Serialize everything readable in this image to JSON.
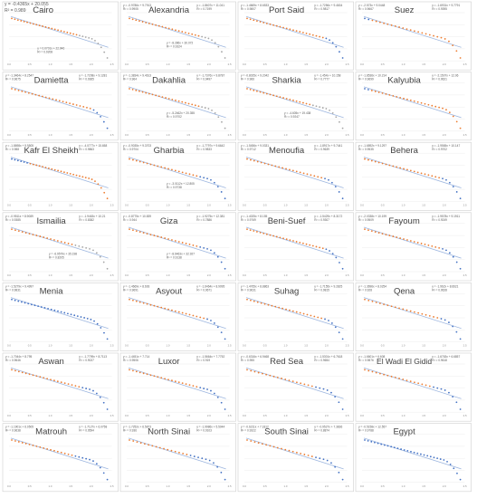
{
  "colors": {
    "orange": "#ED7D31",
    "blue": "#4472C4",
    "gray": "#A5A5A5",
    "trend": "#9DB6DF",
    "frame": "#D0D0D0"
  },
  "chart_data": [
    {
      "type": "scatter",
      "title": "Cairo",
      "annotations": [
        "y = -0.4365x + 20.055",
        "R² = 0.989",
        "y = 0.0701x + 22.946",
        "R² = 0.9208"
      ]
    },
    {
      "type": "scatter",
      "title": "Alexandria",
      "annotations": [
        "y = -0.9786x + 9.7913",
        "R² = 0.9905",
        "y = -1.8607x + 11.041",
        "R² = 0.7199",
        "y = -8.286x + 30.072",
        "R² = 0.9324"
      ]
    },
    {
      "type": "scatter",
      "title": "Port Said",
      "annotations": [
        "y = -1.4669x + 8.6533",
        "R² = 0.9807",
        "y = -1.7256x + 9.4634",
        "R² = 0.9817"
      ]
    },
    {
      "type": "scatter",
      "title": "Suez",
      "annotations": [
        "y = -2.573x + 9.0448",
        "R² = 0.9667",
        "y = -1.6931x + 9.7791",
        "R² = 0.9395"
      ]
    },
    {
      "type": "scatter",
      "title": "Damietta",
      "annotations": [
        "y = -1.3464x + 8.2547",
        "R² = 0.9675",
        "y = -1.7208x + 9.1281",
        "R² = 0.9365"
      ]
    },
    {
      "type": "scatter",
      "title": "Dakahlia",
      "annotations": [
        "y = -1.3834x + 9.4613",
        "R² = 0.964",
        "y = -1.7376x + 9.8787",
        "R² = 0.9497",
        "y = -5.2462x + 20.355",
        "R² = 0.9702"
      ]
    },
    {
      "type": "scatter",
      "title": "Sharkia",
      "annotations": [
        "y = -0.8025x + 9.2042",
        "R² = 0.966",
        "y = -1.454x + 10.158",
        "R² = 0.7777",
        "y = -4.605x + 19.438",
        "R² = 0.9247"
      ]
    },
    {
      "type": "scatter",
      "title": "Kalyubia",
      "annotations": [
        "y = -1.8536x + 10.214",
        "R² = 0.9699",
        "y = -2.1507x + 12.06",
        "R² = 0.9621"
      ]
    },
    {
      "type": "scatter",
      "title": "Kafr El Sheikh",
      "annotations": [
        "y = -1.8698x + 9.9505",
        "R² = 0.988",
        "y = -4.0777x + 15.658",
        "R² = 0.9863"
      ]
    },
    {
      "type": "scatter",
      "title": "Gharbia",
      "annotations": [
        "y = -0.9035x + 9.3703",
        "R² = 0.9704",
        "y = -1.7797x + 9.6642",
        "R² = 0.9833",
        "y = -3.0112x + 12.805",
        "R² = 0.9738"
      ]
    },
    {
      "type": "scatter",
      "title": "Menoufia",
      "annotations": [
        "y = -1.5456x + 9.0331",
        "R² = 0.9712",
        "y = -1.8917x + 9.7441",
        "R² = 0.9639"
      ]
    },
    {
      "type": "scatter",
      "title": "Behera",
      "annotations": [
        "y = -1.6892x + 9.1297",
        "R² = 0.9535",
        "y = -1.9565x + 10.147",
        "R² = 0.9702"
      ]
    },
    {
      "type": "scatter",
      "title": "Ismailia",
      "annotations": [
        "y = -0.9511x + 8.9089",
        "R² = 0.9385",
        "y = -1.9463x + 10.21",
        "R² = 0.8382",
        "y = -6.9579x + 35.198",
        "R² = 0.8205"
      ]
    },
    {
      "type": "scatter",
      "title": "Giza",
      "annotations": [
        "y = -0.8775x + 10.839",
        "R² = 0.944",
        "y = -1.9275x + 12.381",
        "R² = 0.7886",
        "y = -8.6463x + 32.927",
        "R² = 0.9138"
      ]
    },
    {
      "type": "scatter",
      "title": "Beni-Suef",
      "annotations": [
        "y = -1.4025x + 8.155",
        "R² = 0.9769",
        "y = -1.5429x + 8.3172",
        "R² = 0.9307"
      ]
    },
    {
      "type": "scatter",
      "title": "Fayoum",
      "annotations": [
        "y = -2.0338x + 10.199",
        "R² = 0.9509",
        "y = -1.9578x + 9.1911",
        "R² = 0.9249"
      ]
    },
    {
      "type": "scatter",
      "title": "Menia",
      "annotations": [
        "y = -1.5279x + 9.4997",
        "R² = 0.9831"
      ]
    },
    {
      "type": "scatter",
      "title": "Asyout",
      "annotations": [
        "y = -1.4669x + 8.693",
        "R² = 0.9691",
        "y = -1.6464x + 8.9095",
        "R² = 0.9671"
      ]
    },
    {
      "type": "scatter",
      "title": "Suhag",
      "annotations": [
        "y = -1.4765x + 8.8863",
        "R² = 0.9631",
        "y = -1.7155x + 9.2825",
        "R² = 0.9815"
      ]
    },
    {
      "type": "scatter",
      "title": "Qena",
      "annotations": [
        "y = -1.3696x + 8.0254",
        "R² = 0.928",
        "y = -1.962x + 8.6621",
        "R² = 0.9628"
      ]
    },
    {
      "type": "scatter",
      "title": "Aswan",
      "annotations": [
        "y = -1.7044x + 8.795",
        "R² = 0.9646",
        "y = -1.7799x + 8.7113",
        "R² = 0.9027"
      ]
    },
    {
      "type": "scatter",
      "title": "Luxor",
      "annotations": [
        "y = -1.4451x + 7.714",
        "R² = 0.9506",
        "y = -1.5664x + 7.7752",
        "R² = 0.919"
      ]
    },
    {
      "type": "scatter",
      "title": "Red Sea",
      "annotations": [
        "y = -0.6316x + 6.9468",
        "R² = 0.955",
        "y = -1.5301x + 6.7618",
        "R² = 0.9654"
      ]
    },
    {
      "type": "scatter",
      "title": "El Wadi El Gidid",
      "annotations": [
        "y = -1.6601x + 6.608",
        "R² = 0.9876",
        "y = -1.6763x + 6.6857",
        "R² = 0.9618"
      ]
    },
    {
      "type": "scatter",
      "title": "Matrouh",
      "annotations": [
        "y = -1.1901x + 6.0505",
        "R² = 0.9638",
        "y = -1.7127x + 6.0758",
        "R² = 0.9594"
      ]
    },
    {
      "type": "scatter",
      "title": "North Sinai",
      "annotations": [
        "y = -1.7252x + 6.5873",
        "R² = 0.936",
        "y = -1.9986x + 5.5044",
        "R² = 0.9103"
      ]
    },
    {
      "type": "scatter",
      "title": "South Sinai",
      "annotations": [
        "y = -0.6211x + 7.1812",
        "R² = 0.9322",
        "y = -0.9527x + 7.3836",
        "R² = 0.8874"
      ]
    },
    {
      "type": "scatter",
      "title": "Egypt",
      "annotations": [
        "y = -0.5158x + 12.557",
        "R² = 0.9788"
      ]
    }
  ]
}
